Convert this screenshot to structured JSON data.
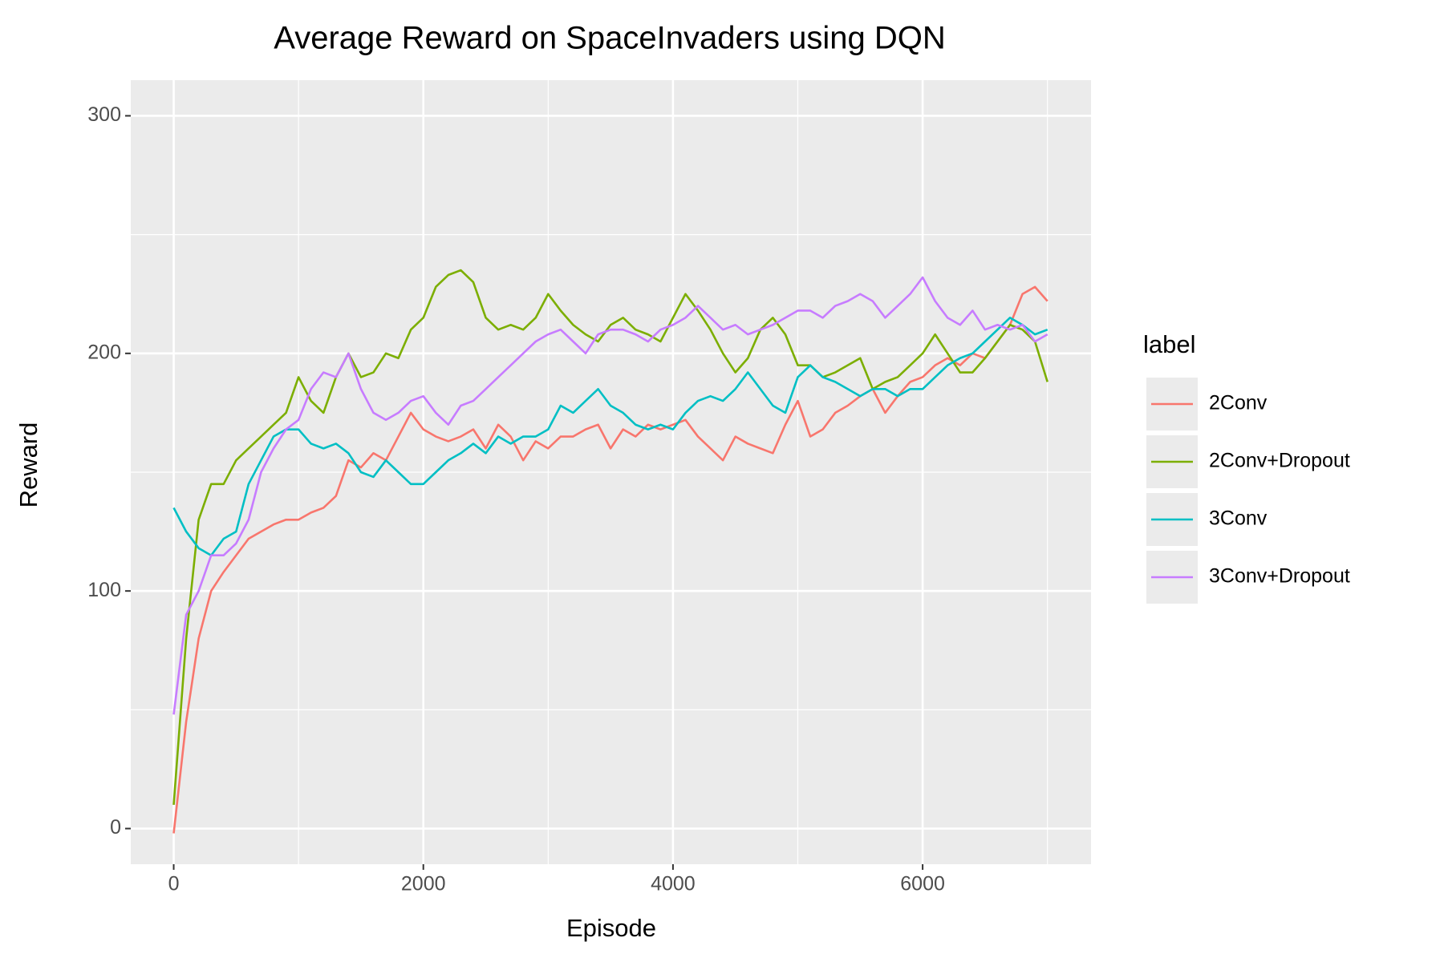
{
  "chart_data": {
    "type": "line",
    "title": "Average Reward on SpaceInvaders using DQN",
    "x_label": "Episode",
    "y_label": "Reward",
    "legend_title": "label",
    "legend": "right",
    "grid": true,
    "xlim": [
      -344,
      7349
    ],
    "ylim": [
      -15,
      315
    ],
    "xticks": [
      0,
      2000,
      4000,
      6000
    ],
    "yticks": [
      0,
      100,
      200,
      300
    ],
    "x_minor_ticks": [
      1000,
      3000,
      5000,
      7000
    ],
    "y_minor_ticks": [
      50,
      150,
      250
    ],
    "x": [
      0,
      100,
      200,
      300,
      400,
      500,
      600,
      700,
      800,
      900,
      1000,
      1100,
      1200,
      1300,
      1400,
      1500,
      1600,
      1700,
      1800,
      1900,
      2000,
      2100,
      2200,
      2300,
      2400,
      2500,
      2600,
      2700,
      2800,
      2900,
      3000,
      3100,
      3200,
      3300,
      3400,
      3500,
      3600,
      3700,
      3800,
      3900,
      4000,
      4100,
      4200,
      4300,
      4400,
      4500,
      4600,
      4700,
      4800,
      4900,
      5000,
      5100,
      5200,
      5300,
      5400,
      5500,
      5600,
      5700,
      5800,
      5900,
      6000,
      6100,
      6200,
      6300,
      6400,
      6500,
      6600,
      6700,
      6800,
      6900,
      7000
    ],
    "series": [
      {
        "name": "2Conv",
        "color": "#f8766d",
        "values": [
          -2,
          45,
          80,
          100,
          108,
          115,
          122,
          125,
          128,
          130,
          130,
          133,
          135,
          140,
          155,
          152,
          158,
          155,
          165,
          175,
          168,
          165,
          163,
          165,
          168,
          160,
          170,
          165,
          155,
          163,
          160,
          165,
          165,
          168,
          170,
          160,
          168,
          165,
          170,
          168,
          170,
          172,
          165,
          160,
          155,
          165,
          162,
          160,
          158,
          170,
          180,
          165,
          168,
          175,
          178,
          182,
          185,
          175,
          182,
          188,
          190,
          195,
          198,
          195,
          200,
          198,
          205,
          212,
          225,
          228,
          222
        ]
      },
      {
        "name": "2Conv+Dropout",
        "color": "#7cae00",
        "values": [
          10,
          80,
          130,
          145,
          145,
          155,
          160,
          165,
          170,
          175,
          190,
          180,
          175,
          190,
          200,
          190,
          192,
          200,
          198,
          210,
          215,
          228,
          233,
          235,
          230,
          215,
          210,
          212,
          210,
          215,
          225,
          218,
          212,
          208,
          205,
          212,
          215,
          210,
          208,
          205,
          215,
          225,
          218,
          210,
          200,
          192,
          198,
          210,
          215,
          208,
          195,
          195,
          190,
          192,
          195,
          198,
          185,
          188,
          190,
          195,
          200,
          208,
          200,
          192,
          192,
          198,
          205,
          212,
          210,
          205,
          188
        ]
      },
      {
        "name": "3Conv",
        "color": "#00bfc4",
        "values": [
          135,
          125,
          118,
          115,
          122,
          125,
          145,
          155,
          165,
          168,
          168,
          162,
          160,
          162,
          158,
          150,
          148,
          155,
          150,
          145,
          145,
          150,
          155,
          158,
          162,
          158,
          165,
          162,
          165,
          165,
          168,
          178,
          175,
          180,
          185,
          178,
          175,
          170,
          168,
          170,
          168,
          175,
          180,
          182,
          180,
          185,
          192,
          185,
          178,
          175,
          190,
          195,
          190,
          188,
          185,
          182,
          185,
          185,
          182,
          185,
          185,
          190,
          195,
          198,
          200,
          205,
          210,
          215,
          212,
          208,
          210
        ]
      },
      {
        "name": "3Conv+Dropout",
        "color": "#c77cff",
        "values": [
          48,
          90,
          100,
          115,
          115,
          120,
          130,
          150,
          160,
          168,
          172,
          185,
          192,
          190,
          200,
          185,
          175,
          172,
          175,
          180,
          182,
          175,
          170,
          178,
          180,
          185,
          190,
          195,
          200,
          205,
          208,
          210,
          205,
          200,
          208,
          210,
          210,
          208,
          205,
          210,
          212,
          215,
          220,
          215,
          210,
          212,
          208,
          210,
          212,
          215,
          218,
          218,
          215,
          220,
          222,
          225,
          222,
          215,
          220,
          225,
          232,
          222,
          215,
          212,
          218,
          210,
          212,
          210,
          212,
          205,
          208
        ]
      }
    ]
  }
}
